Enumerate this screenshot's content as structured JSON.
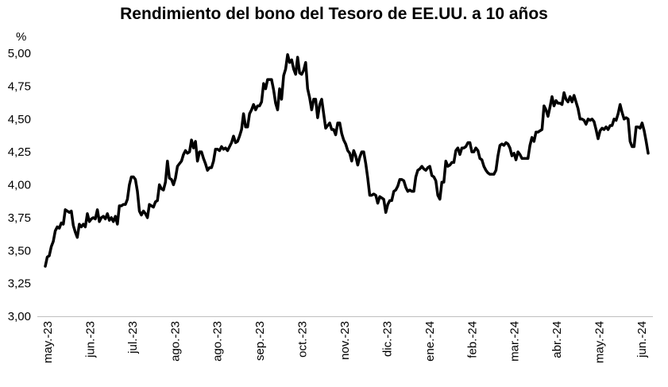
{
  "chart_data": {
    "type": "line",
    "title": "Rendimiento del bono del Tesoro de EE.UU. a 10 años",
    "ylabel": "%",
    "xlabel": "",
    "ylim": [
      3.0,
      5.0
    ],
    "y_ticks": [
      "3,00",
      "3,25",
      "3,50",
      "3,75",
      "4,00",
      "4,25",
      "4,50",
      "4,75",
      "5,00"
    ],
    "x_ticks": [
      "may.-23",
      "jun.-23",
      "jul.-23",
      "ago.-23",
      "ago.-23",
      "sep.-23",
      "oct.-23",
      "nov.-23",
      "dic.-23",
      "ene.-24",
      "feb.-24",
      "mar.-24",
      "abr.-24",
      "may.-24",
      "jun.-24"
    ],
    "grid": false,
    "series": [
      {
        "values": [
          3.38,
          3.45,
          3.46,
          3.53,
          3.57,
          3.65,
          3.68,
          3.67,
          3.71,
          3.7,
          3.81,
          3.8,
          3.79,
          3.8,
          3.69,
          3.64,
          3.6,
          3.7,
          3.68,
          3.7,
          3.68,
          3.78,
          3.72,
          3.74,
          3.75,
          3.74,
          3.81,
          3.72,
          3.75,
          3.76,
          3.74,
          3.78,
          3.73,
          3.75,
          3.72,
          3.76,
          3.7,
          3.84,
          3.84,
          3.85,
          3.85,
          3.89,
          4.0,
          4.06,
          4.06,
          4.04,
          3.95,
          3.8,
          3.77,
          3.8,
          3.78,
          3.75,
          3.85,
          3.84,
          3.83,
          3.87,
          3.88,
          4.0,
          3.97,
          3.96,
          4.02,
          4.18,
          4.05,
          4.04,
          4.0,
          4.05,
          4.14,
          4.16,
          4.18,
          4.23,
          4.26,
          4.24,
          4.25,
          4.34,
          4.28,
          4.33,
          4.18,
          4.25,
          4.25,
          4.2,
          4.16,
          4.11,
          4.13,
          4.13,
          4.18,
          4.27,
          4.27,
          4.26,
          4.29,
          4.27,
          4.28,
          4.26,
          4.29,
          4.32,
          4.37,
          4.32,
          4.33,
          4.37,
          4.42,
          4.54,
          4.44,
          4.44,
          4.54,
          4.57,
          4.61,
          4.57,
          4.6,
          4.6,
          4.63,
          4.77,
          4.73,
          4.8,
          4.8,
          4.8,
          4.72,
          4.62,
          4.57,
          4.73,
          4.65,
          4.83,
          4.88,
          4.99,
          4.93,
          4.95,
          4.88,
          4.84,
          4.97,
          4.85,
          4.84,
          4.87,
          4.93,
          4.73,
          4.66,
          4.57,
          4.65,
          4.65,
          4.51,
          4.61,
          4.65,
          4.54,
          4.43,
          4.45,
          4.47,
          4.42,
          4.42,
          4.38,
          4.47,
          4.47,
          4.39,
          4.34,
          4.31,
          4.26,
          4.24,
          4.18,
          4.26,
          4.22,
          4.15,
          4.21,
          4.25,
          4.25,
          4.16,
          4.05,
          3.92,
          3.92,
          3.93,
          3.92,
          3.86,
          3.91,
          3.9,
          3.89,
          3.79,
          3.85,
          3.88,
          3.88,
          3.95,
          3.96,
          3.99,
          4.04,
          4.04,
          4.03,
          3.98,
          3.95,
          3.96,
          3.95,
          3.95,
          4.06,
          4.11,
          4.12,
          4.14,
          4.12,
          4.11,
          4.13,
          4.14,
          4.07,
          4.06,
          4.03,
          3.92,
          3.89,
          4.02,
          4.02,
          4.18,
          4.14,
          4.15,
          4.17,
          4.17,
          4.26,
          4.28,
          4.23,
          4.28,
          4.28,
          4.29,
          4.32,
          4.32,
          4.25,
          4.25,
          4.28,
          4.26,
          4.2,
          4.19,
          4.14,
          4.11,
          4.09,
          4.08,
          4.08,
          4.08,
          4.11,
          4.22,
          4.3,
          4.31,
          4.3,
          4.32,
          4.31,
          4.28,
          4.22,
          4.24,
          4.19,
          4.25,
          4.23,
          4.2,
          4.2,
          4.2,
          4.2,
          4.3,
          4.36,
          4.33,
          4.4,
          4.4,
          4.41,
          4.42,
          4.6,
          4.57,
          4.52,
          4.59,
          4.67,
          4.6,
          4.64,
          4.62,
          4.62,
          4.61,
          4.7,
          4.65,
          4.63,
          4.67,
          4.63,
          4.68,
          4.63,
          4.58,
          4.5,
          4.5,
          4.49,
          4.46,
          4.5,
          4.49,
          4.5,
          4.48,
          4.42,
          4.35,
          4.41,
          4.43,
          4.42,
          4.44,
          4.42,
          4.45,
          4.45,
          4.5,
          4.49,
          4.54,
          4.61,
          4.55,
          4.5,
          4.51,
          4.5,
          4.33,
          4.29,
          4.29,
          4.44,
          4.44,
          4.43,
          4.47,
          4.41,
          4.33,
          4.24
        ]
      }
    ]
  }
}
